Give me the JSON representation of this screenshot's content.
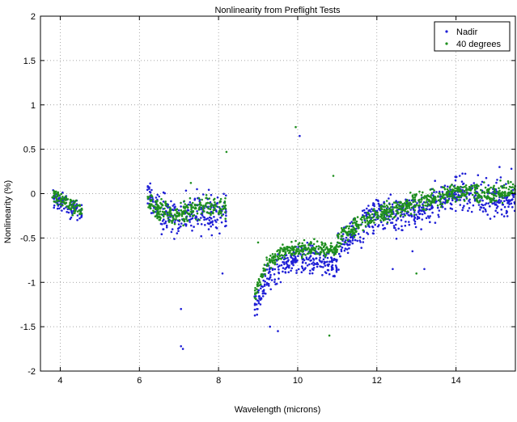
{
  "chart_data": {
    "type": "scatter",
    "title": "Nonlinearity from Preflight Tests",
    "xlabel": "Wavelength (microns)",
    "ylabel": "Nonlinearity (%)",
    "xlim": [
      3.5,
      15.5
    ],
    "ylim": [
      -2,
      2
    ],
    "xticks": [
      "4",
      "6",
      "8",
      "10",
      "12",
      "14"
    ],
    "yticks": [
      "2",
      "1.5",
      "1",
      "0.5",
      "0",
      "-0.5",
      "-1",
      "-1.5",
      "-2"
    ],
    "grid": true,
    "legend_position": "top-right",
    "series": [
      {
        "name": "Nadir",
        "color": "#1f1fd6",
        "ranges": [
          {
            "x": [
              3.8,
              4.55
            ],
            "trend": [
              [
                3.8,
                -0.05
              ],
              [
                4.1,
                -0.1
              ],
              [
                4.3,
                -0.15
              ],
              [
                4.55,
                -0.22
              ]
            ],
            "spread": 0.12
          },
          {
            "x": [
              6.2,
              8.2
            ],
            "trend": [
              [
                6.2,
                0.0
              ],
              [
                6.5,
                -0.2
              ],
              [
                7.0,
                -0.3
              ],
              [
                7.5,
                -0.2
              ],
              [
                8.2,
                -0.2
              ]
            ],
            "spread": 0.2
          },
          {
            "x": [
              8.9,
              11.0
            ],
            "trend": [
              [
                8.9,
                -1.3
              ],
              [
                9.2,
                -1.0
              ],
              [
                9.6,
                -0.8
              ],
              [
                10.0,
                -0.72
              ],
              [
                10.5,
                -0.75
              ],
              [
                11.0,
                -0.8
              ]
            ],
            "spread": 0.15
          },
          {
            "x": [
              11.0,
              15.5
            ],
            "trend": [
              [
                11.0,
                -0.65
              ],
              [
                11.5,
                -0.4
              ],
              [
                12.0,
                -0.25
              ],
              [
                13.0,
                -0.2
              ],
              [
                14.0,
                0.0
              ],
              [
                15.0,
                -0.05
              ],
              [
                15.5,
                -0.1
              ]
            ],
            "spread": 0.2
          }
        ],
        "outliers": [
          [
            7.05,
            -1.3
          ],
          [
            7.05,
            -1.72
          ],
          [
            7.1,
            -1.75
          ],
          [
            8.1,
            -0.9
          ],
          [
            10.05,
            0.65
          ],
          [
            9.5,
            -1.55
          ],
          [
            9.3,
            -1.5
          ],
          [
            12.4,
            -0.85
          ],
          [
            12.9,
            -0.65
          ],
          [
            13.2,
            -0.85
          ],
          [
            15.1,
            0.3
          ],
          [
            15.4,
            0.28
          ]
        ]
      },
      {
        "name": "40 degrees",
        "color": "#1f8f1f",
        "ranges": [
          {
            "x": [
              3.8,
              4.55
            ],
            "trend": [
              [
                3.8,
                -0.02
              ],
              [
                4.1,
                -0.08
              ],
              [
                4.3,
                -0.14
              ],
              [
                4.55,
                -0.2
              ]
            ],
            "spread": 0.08
          },
          {
            "x": [
              6.2,
              8.2
            ],
            "trend": [
              [
                6.2,
                -0.05
              ],
              [
                6.5,
                -0.2
              ],
              [
                7.0,
                -0.25
              ],
              [
                7.5,
                -0.15
              ],
              [
                8.2,
                -0.15
              ]
            ],
            "spread": 0.12
          },
          {
            "x": [
              8.9,
              11.0
            ],
            "trend": [
              [
                8.9,
                -1.15
              ],
              [
                9.2,
                -0.8
              ],
              [
                9.6,
                -0.65
              ],
              [
                10.0,
                -0.62
              ],
              [
                10.5,
                -0.62
              ],
              [
                11.0,
                -0.62
              ]
            ],
            "spread": 0.08
          },
          {
            "x": [
              11.0,
              15.5
            ],
            "trend": [
              [
                11.0,
                -0.55
              ],
              [
                11.5,
                -0.35
              ],
              [
                12.0,
                -0.25
              ],
              [
                13.0,
                -0.1
              ],
              [
                14.0,
                0.02
              ],
              [
                15.0,
                0.0
              ],
              [
                15.5,
                0.05
              ]
            ],
            "spread": 0.1
          }
        ],
        "outliers": [
          [
            8.2,
            0.47
          ],
          [
            9.95,
            0.75
          ],
          [
            10.9,
            0.2
          ],
          [
            10.8,
            -1.6
          ],
          [
            7.3,
            0.12
          ],
          [
            9.0,
            -0.55
          ],
          [
            13.0,
            -0.9
          ]
        ]
      }
    ]
  }
}
